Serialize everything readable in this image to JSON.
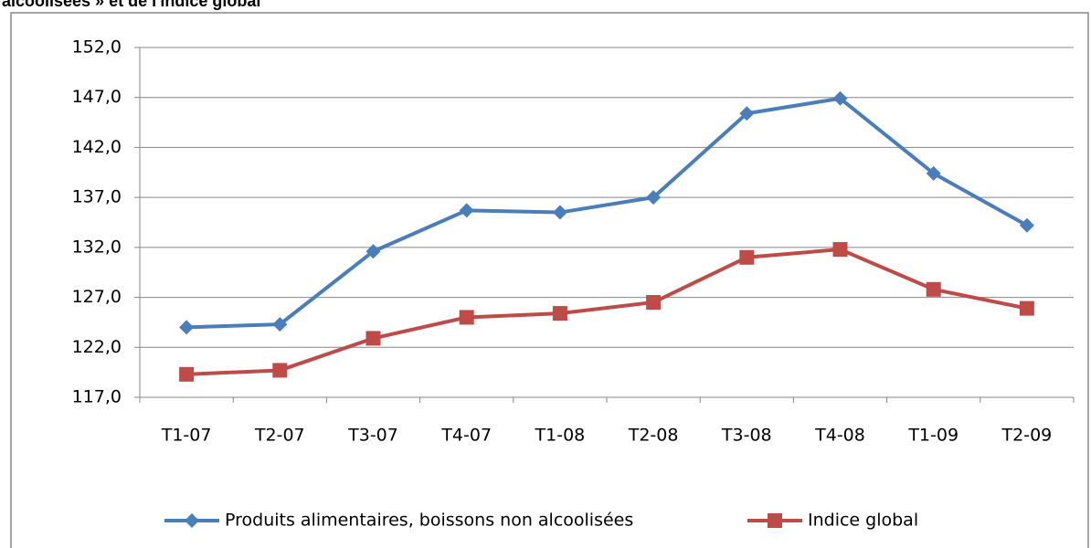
{
  "chart_data": {
    "type": "line",
    "title": "alcoolisées » et de l'indice global",
    "categories": [
      "T1-07",
      "T2-07",
      "T3-07",
      "T4-07",
      "T1-08",
      "T2-08",
      "T3-08",
      "T4-08",
      "T1-09",
      "T2-09"
    ],
    "series": [
      {
        "name": "Produits alimentaires, boissons non alcoolisées",
        "color": "#4a7ebb",
        "marker": "diamond",
        "values": [
          124.0,
          124.3,
          131.6,
          135.7,
          135.5,
          137.0,
          145.4,
          146.9,
          139.4,
          134.2
        ]
      },
      {
        "name": "Indice global",
        "color": "#be4b48",
        "marker": "square",
        "values": [
          119.3,
          119.7,
          122.9,
          125.0,
          125.4,
          126.5,
          131.0,
          131.8,
          127.8,
          125.9
        ]
      }
    ],
    "ylim": [
      117,
      152
    ],
    "yticks": [
      {
        "value": 117,
        "label": "117,0"
      },
      {
        "value": 122,
        "label": "122,0"
      },
      {
        "value": 127,
        "label": "127,0"
      },
      {
        "value": 132,
        "label": "132,0"
      },
      {
        "value": 137,
        "label": "137,0"
      },
      {
        "value": 142,
        "label": "142,0"
      },
      {
        "value": 147,
        "label": "147,0"
      },
      {
        "value": 152,
        "label": "152,0"
      }
    ],
    "grid": true,
    "legend": "bottom"
  }
}
